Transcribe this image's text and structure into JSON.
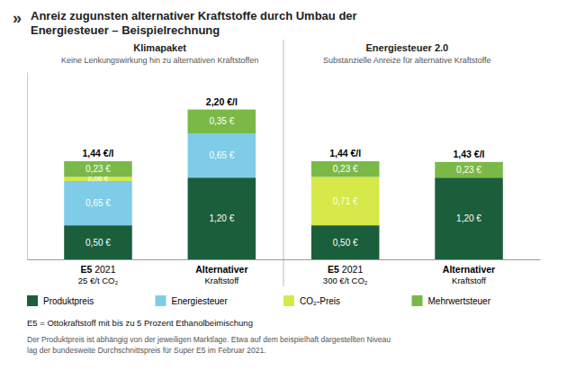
{
  "chart_data": {
    "type": "bar",
    "stacked": true,
    "data_labels": true,
    "grid": false,
    "tick_labels": false,
    "title": "Anreiz zugunsten alternativer Kraftstoffe durch Umbau der\nEnergiesteuer – Beispielrechnung",
    "annotations": [
      "»",
      "Klimapaket",
      "Keine Lenkungswirkung hin zu alternativen Kraftstoffen",
      "Energiesteuer 2.0",
      "Substanzielle Anreize für alternative Kraftstoffe",
      "E5 = Ottokraftstoff mit bis zu 5 Prozent Ethanolbeimischung",
      "Der Produktpreis ist abhängig von der jeweiligen Marktlage. Etwa auf dem beispielhaft dargestellten Niveau\nlag der bundesweite Durchschnittspreis für Super E5 im Februar 2021."
    ],
    "categories": [
      "E5 2021\n25 €/t CO₂",
      "Alternativer\nKraftstoff",
      "E5 2021\n300 €/t CO₂",
      "Alternativer\nKraftstoff"
    ],
    "series": [
      {
        "name": "Produktpreis",
        "color": "#1b5e3b",
        "values": [
          0.5,
          1.2,
          0.5,
          1.2
        ],
        "value_labels": [
          "0,50 €",
          "1,20 €",
          "0,50 €",
          "1,20 €"
        ]
      },
      {
        "name": "Energiesteuer",
        "color": "#7ecce8",
        "values": [
          0.65,
          0.65,
          0.0,
          0.0
        ],
        "value_labels": [
          "0,65 €",
          "0,65 €",
          null,
          null
        ]
      },
      {
        "name": "CO₂-Preis",
        "color": "#d6e84a",
        "values": [
          0.06,
          0.0,
          0.71,
          0.0
        ],
        "value_labels": [
          "0,06 €",
          null,
          "0,71 €",
          null
        ]
      },
      {
        "name": "Mehrwertsteuer",
        "color": "#7ab947",
        "values": [
          0.23,
          0.35,
          0.23,
          0.23
        ],
        "value_labels": [
          "0,23 €",
          "0,35 €",
          "0,23 €",
          "0,23 €"
        ]
      }
    ],
    "totals": [
      1.44,
      2.2,
      1.44,
      1.43
    ],
    "total_labels": [
      "1,44 €/l",
      "2,20 €/l",
      "1,44 €/l",
      "1,43 €/l"
    ],
    "ylim": [
      0,
      2.75
    ]
  }
}
